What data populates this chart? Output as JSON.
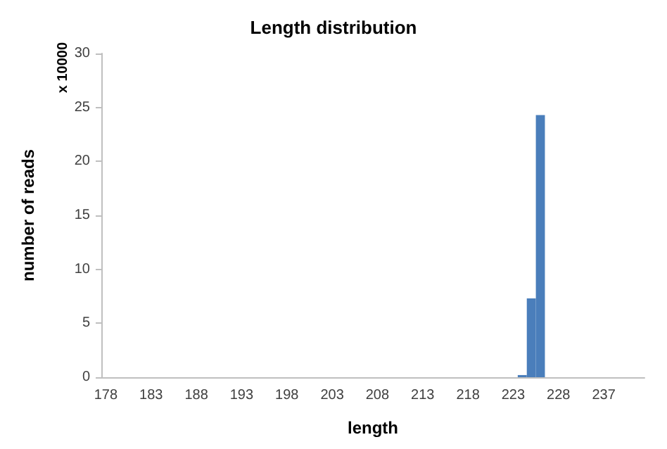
{
  "chart_data": {
    "type": "bar",
    "title": "Length distribution",
    "xlabel": "length",
    "ylabel": "number of reads",
    "annotations": [
      "x 10000"
    ],
    "categories": [
      "178",
      null,
      null,
      null,
      null,
      "183",
      null,
      null,
      null,
      null,
      "188",
      null,
      null,
      null,
      null,
      "193",
      null,
      null,
      null,
      null,
      "198",
      null,
      null,
      null,
      null,
      "203",
      null,
      null,
      null,
      null,
      "208",
      null,
      null,
      null,
      null,
      "213",
      null,
      null,
      null,
      null,
      "218",
      null,
      null,
      null,
      null,
      "223",
      null,
      null,
      null,
      null,
      "228",
      null,
      null,
      null,
      null,
      "237",
      null,
      null,
      null,
      null
    ],
    "values": [
      0,
      0,
      0,
      0,
      0,
      0,
      0,
      0,
      0,
      0,
      0,
      0,
      0,
      0,
      0,
      0,
      0,
      0,
      0,
      0,
      0,
      0,
      0,
      0,
      0,
      0,
      0,
      0,
      0,
      0,
      0,
      0,
      0,
      0,
      0,
      0,
      0,
      0,
      0,
      0,
      0,
      0,
      0,
      0,
      0,
      0,
      0.2,
      7.3,
      24.3,
      0,
      0,
      0,
      0,
      0,
      0,
      0,
      0,
      0,
      0,
      0
    ],
    "color": "#4a7ebb",
    "ylim": [
      0,
      30
    ],
    "yticks": [
      0,
      5,
      10,
      15,
      20,
      25,
      30
    ]
  }
}
